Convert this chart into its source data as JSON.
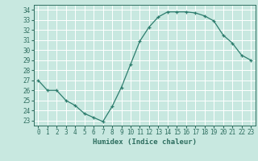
{
  "x": [
    0,
    1,
    2,
    3,
    4,
    5,
    6,
    7,
    8,
    9,
    10,
    11,
    12,
    13,
    14,
    15,
    16,
    17,
    18,
    19,
    20,
    21,
    22,
    23
  ],
  "y": [
    27.0,
    26.0,
    26.0,
    25.0,
    24.5,
    23.7,
    23.3,
    22.9,
    24.4,
    26.3,
    28.6,
    30.9,
    32.3,
    33.3,
    33.8,
    33.8,
    33.8,
    33.7,
    33.4,
    32.9,
    31.5,
    30.7,
    29.5,
    29.0
  ],
  "line_color": "#2e7d6e",
  "marker": "+",
  "bg_color": "#c8e8e0",
  "grid_color": "#ffffff",
  "xlabel": "Humidex (Indice chaleur)",
  "ylim": [
    22.5,
    34.5
  ],
  "xlim": [
    -0.5,
    23.5
  ],
  "yticks": [
    23,
    24,
    25,
    26,
    27,
    28,
    29,
    30,
    31,
    32,
    33,
    34
  ],
  "xticks": [
    0,
    1,
    2,
    3,
    4,
    5,
    6,
    7,
    8,
    9,
    10,
    11,
    12,
    13,
    14,
    15,
    16,
    17,
    18,
    19,
    20,
    21,
    22,
    23
  ],
  "tick_color": "#2e6e60",
  "label_fontsize": 6.5,
  "tick_fontsize": 5.5
}
